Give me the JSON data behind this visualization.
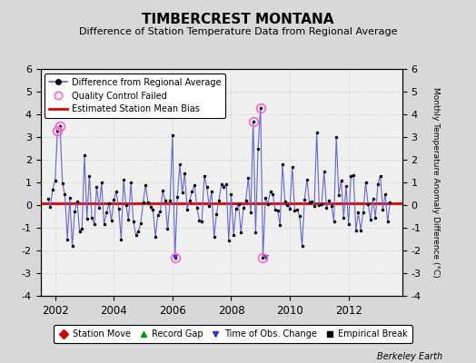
{
  "title": "TIMBERCREST MONTANA",
  "subtitle": "Difference of Station Temperature Data from Regional Average",
  "ylabel": "Monthly Temperature Anomaly Difference (°C)",
  "xlabel_credit": "Berkeley Earth",
  "ylim": [
    -4,
    6
  ],
  "yticks": [
    -4,
    -3,
    -2,
    -1,
    0,
    1,
    2,
    3,
    4,
    5,
    6
  ],
  "xlim": [
    2001.5,
    2013.83
  ],
  "xticks": [
    2002,
    2004,
    2006,
    2008,
    2010,
    2012
  ],
  "bias_line_y": 0.1,
  "background_color": "#d8d8d8",
  "plot_bg_color": "#f0f0f0",
  "line_color": "#6666cc",
  "bias_color": "#dd0000",
  "qc_color": "#ff66cc",
  "title_fontsize": 11,
  "subtitle_fontsize": 8
}
